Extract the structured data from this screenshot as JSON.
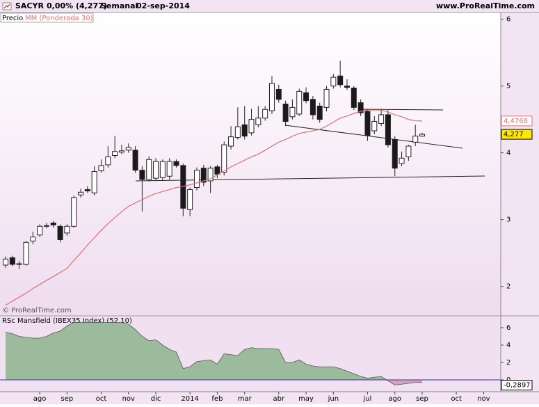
{
  "header": {
    "symbol": "SACYR",
    "change": "0,00% (4,277)",
    "period": "Semanal",
    "date": "02-sep-2014",
    "site": "www.ProRealTime.com"
  },
  "chart_data": [
    {
      "type": "candlestick",
      "legend": [
        "Precio",
        "MM (Ponderada 30)"
      ],
      "copyright": "© ProRealTime.com",
      "categories": [
        null,
        null,
        null,
        null,
        null,
        "ago",
        null,
        null,
        null,
        "sep",
        null,
        null,
        null,
        null,
        "oct",
        null,
        null,
        null,
        "nov",
        null,
        null,
        null,
        "dic",
        null,
        null,
        null,
        null,
        "2014",
        null,
        null,
        null,
        "feb",
        null,
        null,
        null,
        "mar",
        null,
        null,
        null,
        null,
        "abr",
        null,
        null,
        null,
        "may",
        null,
        null,
        null,
        "jun",
        null,
        null,
        null,
        null,
        "jul",
        null,
        null,
        null,
        "ago",
        null,
        null,
        null,
        "sep",
        null,
        null,
        null,
        null,
        "oct",
        null,
        null,
        null,
        "nov"
      ],
      "open": [
        2.32,
        2.43,
        2.33,
        2.33,
        2.68,
        2.77,
        2.9,
        2.95,
        2.9,
        2.8,
        2.9,
        3.37,
        3.45,
        3.4,
        3.73,
        3.82,
        3.96,
        4.01,
        4.04,
        4.04,
        3.74,
        3.6,
        3.62,
        3.63,
        3.65,
        3.87,
        3.81,
        3.15,
        3.48,
        3.77,
        3.58,
        3.79,
        3.71,
        4.1,
        4.23,
        4.42,
        4.3,
        4.42,
        4.52,
        4.63,
        4.95,
        4.73,
        4.54,
        4.58,
        4.9,
        4.8,
        4.7,
        4.68,
        5.0,
        5.15,
        5.0,
        4.97,
        4.75,
        4.62,
        4.33,
        4.44,
        4.57,
        4.2,
        3.84,
        3.94,
        4.16,
        4.25,
        null,
        null,
        null,
        null,
        null,
        null,
        null,
        null,
        null
      ],
      "high": [
        2.45,
        2.46,
        2.38,
        2.68,
        2.82,
        2.93,
        2.95,
        2.98,
        2.93,
        2.93,
        3.36,
        3.46,
        3.5,
        3.8,
        3.9,
        4.1,
        4.25,
        4.12,
        4.14,
        4.1,
        3.8,
        3.95,
        3.92,
        3.9,
        3.92,
        3.9,
        3.84,
        3.48,
        3.78,
        3.82,
        3.8,
        3.82,
        4.17,
        4.4,
        4.68,
        4.7,
        4.66,
        4.7,
        4.7,
        5.15,
        5.02,
        4.78,
        4.8,
        4.96,
        4.98,
        4.85,
        4.75,
        5.0,
        5.18,
        5.38,
        5.1,
        5.0,
        4.8,
        4.65,
        4.55,
        4.66,
        4.64,
        4.25,
        4.02,
        4.12,
        4.42,
        4.3,
        null,
        null,
        null,
        null,
        null,
        null,
        null,
        null,
        null
      ],
      "low": [
        2.28,
        2.3,
        2.26,
        2.31,
        2.63,
        2.74,
        2.87,
        2.88,
        2.66,
        2.76,
        2.88,
        3.33,
        3.4,
        3.36,
        3.7,
        3.78,
        3.92,
        3.98,
        4.0,
        3.7,
        3.12,
        3.57,
        3.58,
        3.58,
        3.6,
        3.78,
        3.05,
        3.05,
        3.44,
        3.5,
        3.4,
        3.62,
        3.66,
        4.05,
        4.2,
        4.2,
        4.26,
        4.38,
        4.48,
        4.58,
        4.75,
        4.4,
        4.5,
        4.55,
        4.74,
        4.5,
        4.45,
        4.62,
        4.96,
        4.98,
        4.94,
        4.64,
        4.55,
        4.18,
        4.28,
        4.4,
        4.08,
        3.65,
        3.8,
        3.88,
        4.1,
        4.24,
        null,
        null,
        null,
        null,
        null,
        null,
        null,
        null,
        null
      ],
      "close": [
        2.41,
        2.33,
        2.34,
        2.66,
        2.74,
        2.9,
        2.91,
        2.92,
        2.7,
        2.9,
        3.33,
        3.41,
        3.43,
        3.72,
        3.81,
        3.94,
        4.02,
        4.03,
        4.08,
        3.74,
        3.6,
        3.9,
        3.87,
        3.87,
        3.87,
        3.81,
        3.17,
        3.45,
        3.74,
        3.56,
        3.77,
        3.68,
        4.12,
        4.24,
        4.39,
        4.25,
        4.5,
        4.52,
        4.65,
        5.04,
        4.8,
        4.47,
        4.68,
        4.92,
        4.78,
        4.57,
        4.5,
        4.95,
        5.13,
        5.02,
        4.98,
        4.68,
        4.6,
        4.26,
        4.47,
        4.57,
        4.12,
        3.77,
        3.92,
        4.1,
        4.25,
        4.277,
        null,
        null,
        null,
        null,
        null,
        null,
        null,
        null,
        null
      ],
      "series": [
        {
          "name": "MM (Ponderada 30)",
          "color": "#e07070",
          "values": [
            1.72,
            1.78,
            1.84,
            1.9,
            1.97,
            2.03,
            2.09,
            2.15,
            2.21,
            2.27,
            2.39,
            2.5,
            2.62,
            2.73,
            2.84,
            2.94,
            3.03,
            3.12,
            3.2,
            3.25,
            3.3,
            3.35,
            3.39,
            3.42,
            3.45,
            3.48,
            3.5,
            3.52,
            3.55,
            3.58,
            3.61,
            3.67,
            3.73,
            3.79,
            3.84,
            3.89,
            3.94,
            3.98,
            4.04,
            4.1,
            4.16,
            4.2,
            4.25,
            4.29,
            4.31,
            4.33,
            4.35,
            4.4,
            4.46,
            4.52,
            4.55,
            4.59,
            4.62,
            4.64,
            4.64,
            4.64,
            4.61,
            4.57,
            4.54,
            4.5,
            4.48,
            4.4768,
            null,
            null,
            null,
            null,
            null,
            null,
            null,
            null,
            null
          ],
          "last_label": {
            "value": 4.4768,
            "label": "4,4768"
          }
        }
      ],
      "price_marker": {
        "value": 4.277,
        "label": "4,277"
      },
      "ylim": [
        1.57,
        6.1
      ],
      "yticks": [
        2,
        3,
        4,
        5,
        6
      ],
      "grid": false
    },
    {
      "type": "area",
      "title": "RSc Mansfield (IBEX35 Index) (52 10)",
      "color": "#9cbb9c",
      "negative_color": "#d6a3b6",
      "zero_color": "#3030c0",
      "values": [
        5.5,
        5.3,
        5.0,
        4.9,
        4.8,
        4.8,
        5.0,
        5.4,
        5.6,
        6.2,
        6.6,
        6.6,
        6.6,
        6.6,
        6.6,
        6.6,
        6.6,
        6.6,
        6.4,
        5.8,
        5.0,
        4.5,
        4.6,
        4.0,
        3.5,
        3.2,
        1.3,
        1.5,
        2.1,
        2.2,
        2.3,
        1.8,
        3.0,
        2.9,
        2.8,
        3.5,
        3.7,
        3.6,
        3.6,
        3.6,
        3.5,
        2.0,
        2.0,
        2.3,
        1.8,
        1.6,
        1.5,
        1.5,
        1.5,
        1.3,
        1.0,
        0.7,
        0.4,
        0.2,
        0.3,
        0.4,
        -0.1,
        -0.6,
        -0.5,
        -0.4,
        -0.3,
        -0.2897,
        null,
        null,
        null,
        null,
        null,
        null,
        null,
        null,
        null
      ],
      "last_label": {
        "value": -0.2897,
        "label": "-0,2897"
      },
      "ylim": [
        -1.36,
        7.28
      ],
      "yticks": [
        0,
        2,
        4,
        6
      ]
    }
  ]
}
